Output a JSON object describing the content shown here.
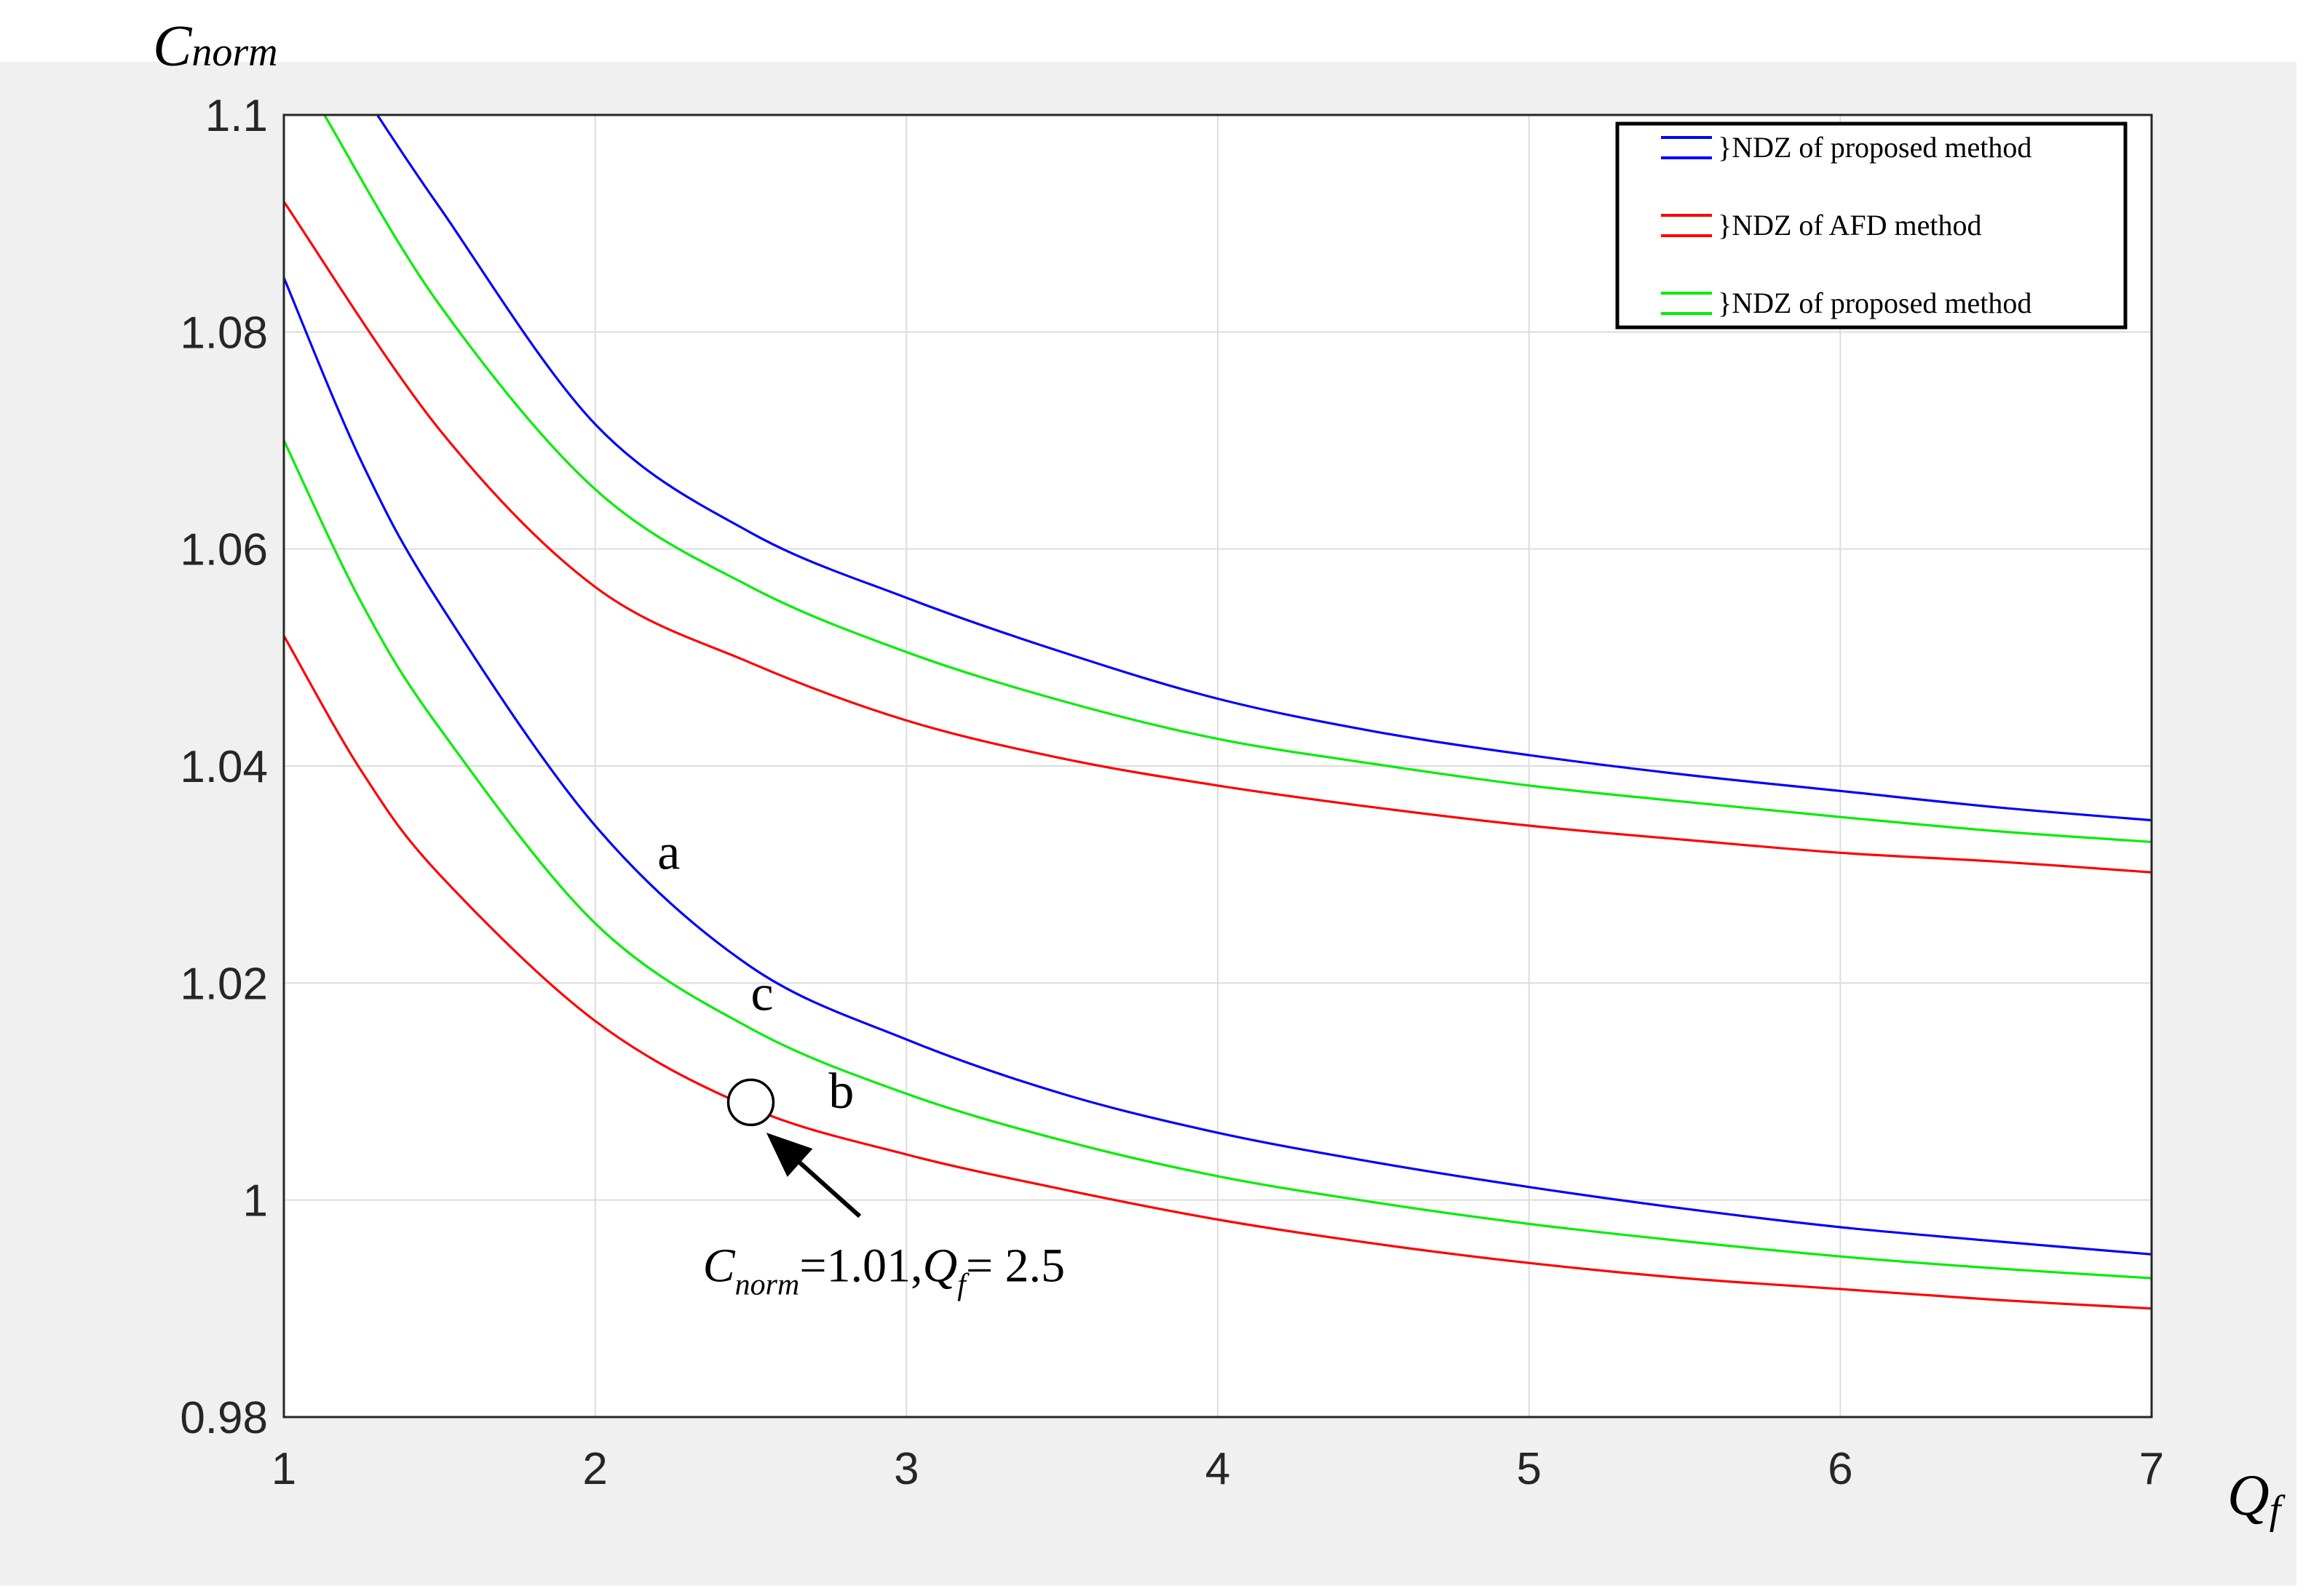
{
  "chart_data": {
    "type": "line",
    "title": "",
    "xlabel": {
      "main": "Q",
      "sub": "f"
    },
    "ylabel": {
      "main": "C",
      "sub": "norm"
    },
    "xlim": [
      1,
      7
    ],
    "ylim": [
      0.98,
      1.1
    ],
    "xticks": [
      1,
      2,
      3,
      4,
      5,
      6,
      7
    ],
    "yticks": [
      0.98,
      1,
      1.02,
      1.04,
      1.06,
      1.08,
      1.1
    ],
    "xtick_labels": [
      "1",
      "2",
      "3",
      "4",
      "5",
      "6",
      "7"
    ],
    "ytick_labels": [
      "0.98",
      "1",
      "1.02",
      "1.04",
      "1.06",
      "1.08",
      "1.1"
    ],
    "grid": true,
    "legend_position": "top-right",
    "legend": [
      {
        "label": "}NDZ of proposed method",
        "color": "#0000ff"
      },
      {
        "label": "}NDZ of AFD method",
        "color": "#ff0000"
      },
      {
        "label": "}NDZ of proposed method",
        "color": "#00ee00"
      }
    ],
    "series": [
      {
        "id": "blue-upper",
        "color": "#0000ff",
        "points": [
          [
            1.3,
            1.1
          ],
          [
            1.5,
            1.0915
          ],
          [
            2,
            1.0715
          ],
          [
            2.5,
            1.0615
          ],
          [
            3,
            1.0555
          ],
          [
            3.5,
            1.0505
          ],
          [
            4,
            1.0462
          ],
          [
            4.5,
            1.0432
          ],
          [
            5,
            1.041
          ],
          [
            5.5,
            1.0392
          ],
          [
            6,
            1.0377
          ],
          [
            6.5,
            1.0362
          ],
          [
            7,
            1.035
          ]
        ]
      },
      {
        "id": "green-upper",
        "color": "#00ee00",
        "points": [
          [
            1.13,
            1.1
          ],
          [
            1.5,
            1.0825
          ],
          [
            2,
            1.0655
          ],
          [
            2.5,
            1.0565
          ],
          [
            3,
            1.0505
          ],
          [
            3.5,
            1.046
          ],
          [
            4,
            1.0425
          ],
          [
            4.5,
            1.0402
          ],
          [
            5,
            1.0382
          ],
          [
            5.5,
            1.0367
          ],
          [
            6,
            1.0353
          ],
          [
            6.5,
            1.034
          ],
          [
            7,
            1.033
          ]
        ]
      },
      {
        "id": "red-upper",
        "color": "#ff0000",
        "points": [
          [
            1,
            1.092
          ],
          [
            1.5,
            1.071
          ],
          [
            2,
            1.0565
          ],
          [
            2.5,
            1.0495
          ],
          [
            3,
            1.0442
          ],
          [
            3.5,
            1.0407
          ],
          [
            4,
            1.0382
          ],
          [
            4.5,
            1.0362
          ],
          [
            5,
            1.0345
          ],
          [
            5.5,
            1.0332
          ],
          [
            6,
            1.032
          ],
          [
            6.5,
            1.0312
          ],
          [
            7,
            1.0302
          ]
        ]
      },
      {
        "id": "blue-lower",
        "color": "#0000ff",
        "points": [
          [
            1,
            1.085
          ],
          [
            1.25,
            1.068
          ],
          [
            1.5,
            1.055
          ],
          [
            2,
            1.0345
          ],
          [
            2.5,
            1.0215
          ],
          [
            3,
            1.0148
          ],
          [
            3.5,
            1.0098
          ],
          [
            4,
            1.0062
          ],
          [
            4.5,
            1.0035
          ],
          [
            5,
            1.0012
          ],
          [
            5.5,
            0.9992
          ],
          [
            6,
            0.9975
          ],
          [
            6.5,
            0.9962
          ],
          [
            7,
            0.995
          ]
        ]
      },
      {
        "id": "green-lower",
        "color": "#00ee00",
        "points": [
          [
            1,
            1.07
          ],
          [
            1.25,
            1.055
          ],
          [
            1.5,
            1.0435
          ],
          [
            2,
            1.0255
          ],
          [
            2.5,
            1.0158
          ],
          [
            3,
            1.0098
          ],
          [
            3.5,
            1.0055
          ],
          [
            4,
            1.0022
          ],
          [
            4.5,
            0.9998
          ],
          [
            5,
            0.9978
          ],
          [
            5.5,
            0.9962
          ],
          [
            6,
            0.9948
          ],
          [
            6.5,
            0.9937
          ],
          [
            7,
            0.9928
          ]
        ]
      },
      {
        "id": "red-lower",
        "color": "#ff0000",
        "points": [
          [
            1,
            1.052
          ],
          [
            1.25,
            1.0395
          ],
          [
            1.5,
            1.03
          ],
          [
            2,
            1.0165
          ],
          [
            2.5,
            1.0085
          ],
          [
            3,
            1.0042
          ],
          [
            3.5,
            1.001
          ],
          [
            4,
            0.9982
          ],
          [
            4.5,
            0.996
          ],
          [
            5,
            0.9942
          ],
          [
            5.5,
            0.9928
          ],
          [
            6,
            0.9918
          ],
          [
            6.5,
            0.9908
          ],
          [
            7,
            0.99
          ]
        ]
      }
    ],
    "curve_labels": [
      {
        "text": "a",
        "x": 2.2,
        "y": 1.0305
      },
      {
        "text": "c",
        "x": 2.5,
        "y": 1.0175
      },
      {
        "text": "b",
        "x": 2.75,
        "y": 1.0085
      }
    ],
    "marker": {
      "x": 2.5,
      "y": 1.009
    },
    "annotation": {
      "c": "C",
      "norm": "norm",
      "eq1": "=1.01,",
      "q": "Q",
      "f": "f",
      "eq2": "= 2.5",
      "text_at": {
        "x": 2.65,
        "y": 0.9925
      },
      "arrow_tail": {
        "x": 2.85,
        "y": 0.9985
      },
      "arrow_head": {
        "x": 2.55,
        "y": 1.0062
      }
    }
  }
}
